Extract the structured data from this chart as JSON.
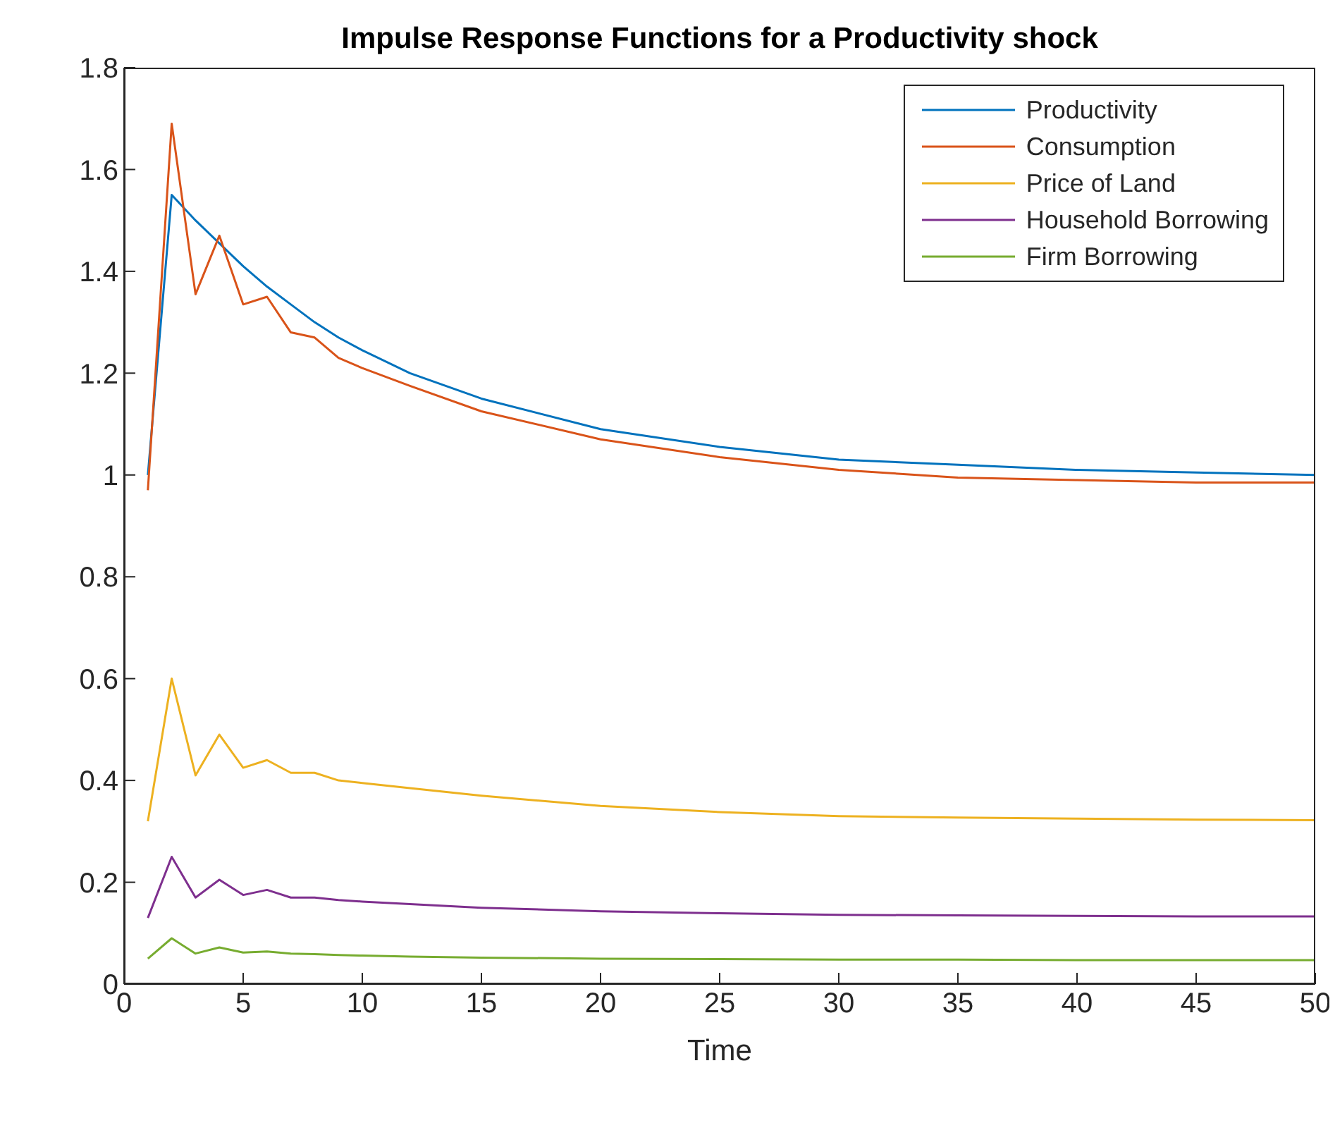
{
  "chart_data": {
    "type": "line",
    "title": "Impulse Response Functions for a Productivity shock",
    "xlabel": "Time",
    "x": [
      1,
      2,
      3,
      4,
      5,
      6,
      7,
      8,
      9,
      10,
      12,
      15,
      20,
      25,
      30,
      35,
      40,
      45,
      50
    ],
    "series": [
      {
        "name": "Productivity",
        "color": "#0072bd",
        "values": [
          1.0,
          1.55,
          1.5,
          1.455,
          1.41,
          1.37,
          1.335,
          1.3,
          1.27,
          1.245,
          1.2,
          1.15,
          1.09,
          1.055,
          1.03,
          1.02,
          1.01,
          1.005,
          1.0
        ]
      },
      {
        "name": "Consumption",
        "color": "#d95319",
        "values": [
          0.97,
          1.69,
          1.355,
          1.47,
          1.335,
          1.35,
          1.28,
          1.27,
          1.23,
          1.21,
          1.175,
          1.125,
          1.07,
          1.035,
          1.01,
          0.995,
          0.99,
          0.985,
          0.985
        ]
      },
      {
        "name": "Price of Land",
        "color": "#edb120",
        "values": [
          0.32,
          0.6,
          0.41,
          0.49,
          0.425,
          0.44,
          0.415,
          0.415,
          0.4,
          0.395,
          0.385,
          0.37,
          0.35,
          0.338,
          0.33,
          0.327,
          0.325,
          0.323,
          0.322
        ]
      },
      {
        "name": "Household Borrowing",
        "color": "#7e2f8e",
        "values": [
          0.13,
          0.25,
          0.17,
          0.205,
          0.175,
          0.185,
          0.17,
          0.17,
          0.165,
          0.162,
          0.157,
          0.15,
          0.143,
          0.139,
          0.136,
          0.135,
          0.134,
          0.133,
          0.133
        ]
      },
      {
        "name": "Firm Borrowing",
        "color": "#77ac30",
        "values": [
          0.05,
          0.09,
          0.06,
          0.072,
          0.062,
          0.064,
          0.06,
          0.059,
          0.057,
          0.056,
          0.054,
          0.052,
          0.05,
          0.049,
          0.048,
          0.048,
          0.047,
          0.047,
          0.047
        ]
      }
    ],
    "xlim": [
      0,
      50
    ],
    "xticks": [
      0,
      5,
      10,
      15,
      20,
      25,
      30,
      35,
      40,
      45,
      50
    ],
    "ylim": [
      0,
      1.8
    ],
    "yticks": [
      0,
      0.2,
      0.4,
      0.6,
      0.8,
      1,
      1.2,
      1.4,
      1.6,
      1.8
    ],
    "grid": false,
    "legend": "top right",
    "marker": "none",
    "line_style": "solid"
  }
}
